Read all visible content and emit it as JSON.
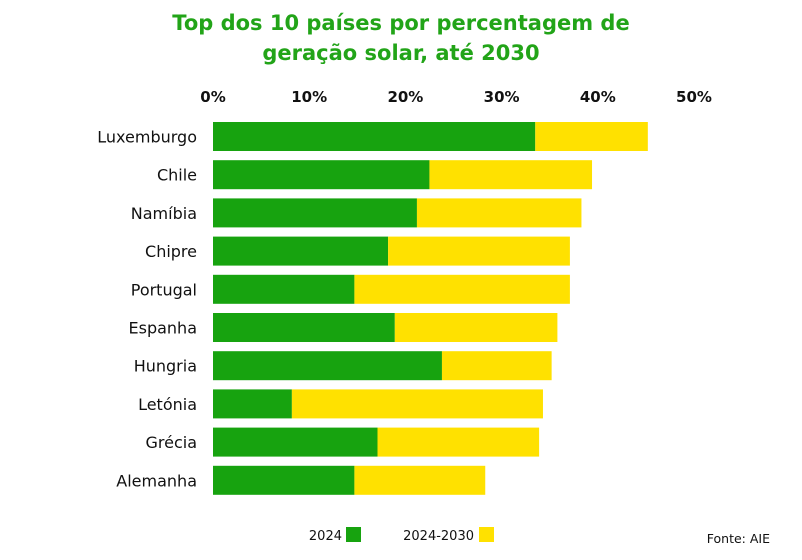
{
  "chart_data": {
    "type": "bar",
    "orientation": "horizontal",
    "stacked": true,
    "title": "Top dos 10 países por percentagem de geração solar, até 2030",
    "title_lines": [
      "Top dos 10 países por percentagem de",
      "geração solar, até 2030"
    ],
    "categories": [
      "Luxemburgo",
      "Chile",
      "Namíbia",
      "Chipre",
      "Portugal",
      "Espanha",
      "Hungria",
      "Letónia",
      "Grécia",
      "Alemanha"
    ],
    "series": [
      {
        "name": "2024",
        "color": "#17a30f",
        "values": [
          33.5,
          22.5,
          21.2,
          18.2,
          14.7,
          18.9,
          23.8,
          8.2,
          17.1,
          14.7
        ]
      },
      {
        "name": "2024-2030",
        "color": "#ffe100",
        "values": [
          11.7,
          16.9,
          17.1,
          18.9,
          22.4,
          16.9,
          11.4,
          26.1,
          16.8,
          13.6
        ]
      }
    ],
    "xlim": [
      0,
      50
    ],
    "xticks": [
      0,
      10,
      20,
      30,
      40,
      50
    ],
    "xtick_labels": [
      "0%",
      "10%",
      "20%",
      "30%",
      "40%",
      "50%"
    ],
    "xlabel": "",
    "ylabel": "",
    "grid": false,
    "legend_position": "bottom",
    "source": "Fonte: AIE"
  }
}
